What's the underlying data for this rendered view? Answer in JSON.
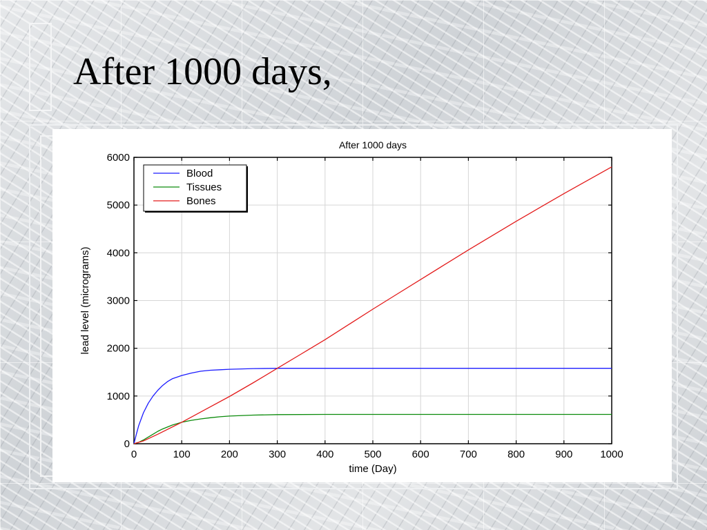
{
  "slide": {
    "title": "After 1000 days,"
  },
  "chart_data": {
    "type": "line",
    "title": "After 1000 days",
    "xlabel": "time (Day)",
    "ylabel": "lead level (micrograms)",
    "xlim": [
      0,
      1000
    ],
    "ylim": [
      0,
      6000
    ],
    "xticks": [
      0,
      100,
      200,
      300,
      400,
      500,
      600,
      700,
      800,
      900,
      1000
    ],
    "yticks": [
      0,
      1000,
      2000,
      3000,
      4000,
      5000,
      6000
    ],
    "grid": true,
    "legend_position": "top-left",
    "series": [
      {
        "name": "Blood",
        "color": "#1a1aff",
        "x": [
          0,
          5,
          10,
          20,
          30,
          40,
          50,
          60,
          70,
          80,
          100,
          120,
          140,
          160,
          180,
          200,
          250,
          300,
          400,
          500,
          600,
          700,
          800,
          900,
          1000
        ],
        "y": [
          0,
          200,
          380,
          650,
          850,
          1000,
          1120,
          1220,
          1300,
          1360,
          1430,
          1480,
          1520,
          1540,
          1550,
          1560,
          1575,
          1580,
          1580,
          1580,
          1580,
          1580,
          1580,
          1580,
          1580
        ]
      },
      {
        "name": "Tissues",
        "color": "#0a8a0a",
        "x": [
          0,
          10,
          20,
          30,
          40,
          50,
          60,
          80,
          100,
          120,
          140,
          160,
          180,
          200,
          250,
          300,
          400,
          500,
          600,
          700,
          800,
          900,
          1000
        ],
        "y": [
          0,
          30,
          80,
          140,
          200,
          260,
          310,
          390,
          450,
          490,
          520,
          545,
          565,
          580,
          600,
          610,
          615,
          615,
          615,
          615,
          615,
          615,
          615
        ]
      },
      {
        "name": "Bones",
        "color": "#e31a1a",
        "x": [
          0,
          20,
          50,
          100,
          150,
          200,
          250,
          300,
          350,
          400,
          450,
          500,
          550,
          600,
          650,
          700,
          750,
          800,
          850,
          900,
          950,
          1000
        ],
        "y": [
          0,
          60,
          200,
          450,
          720,
          990,
          1280,
          1580,
          1880,
          2180,
          2500,
          2820,
          3130,
          3440,
          3750,
          4060,
          4360,
          4660,
          4950,
          5240,
          5520,
          5800
        ]
      }
    ]
  }
}
